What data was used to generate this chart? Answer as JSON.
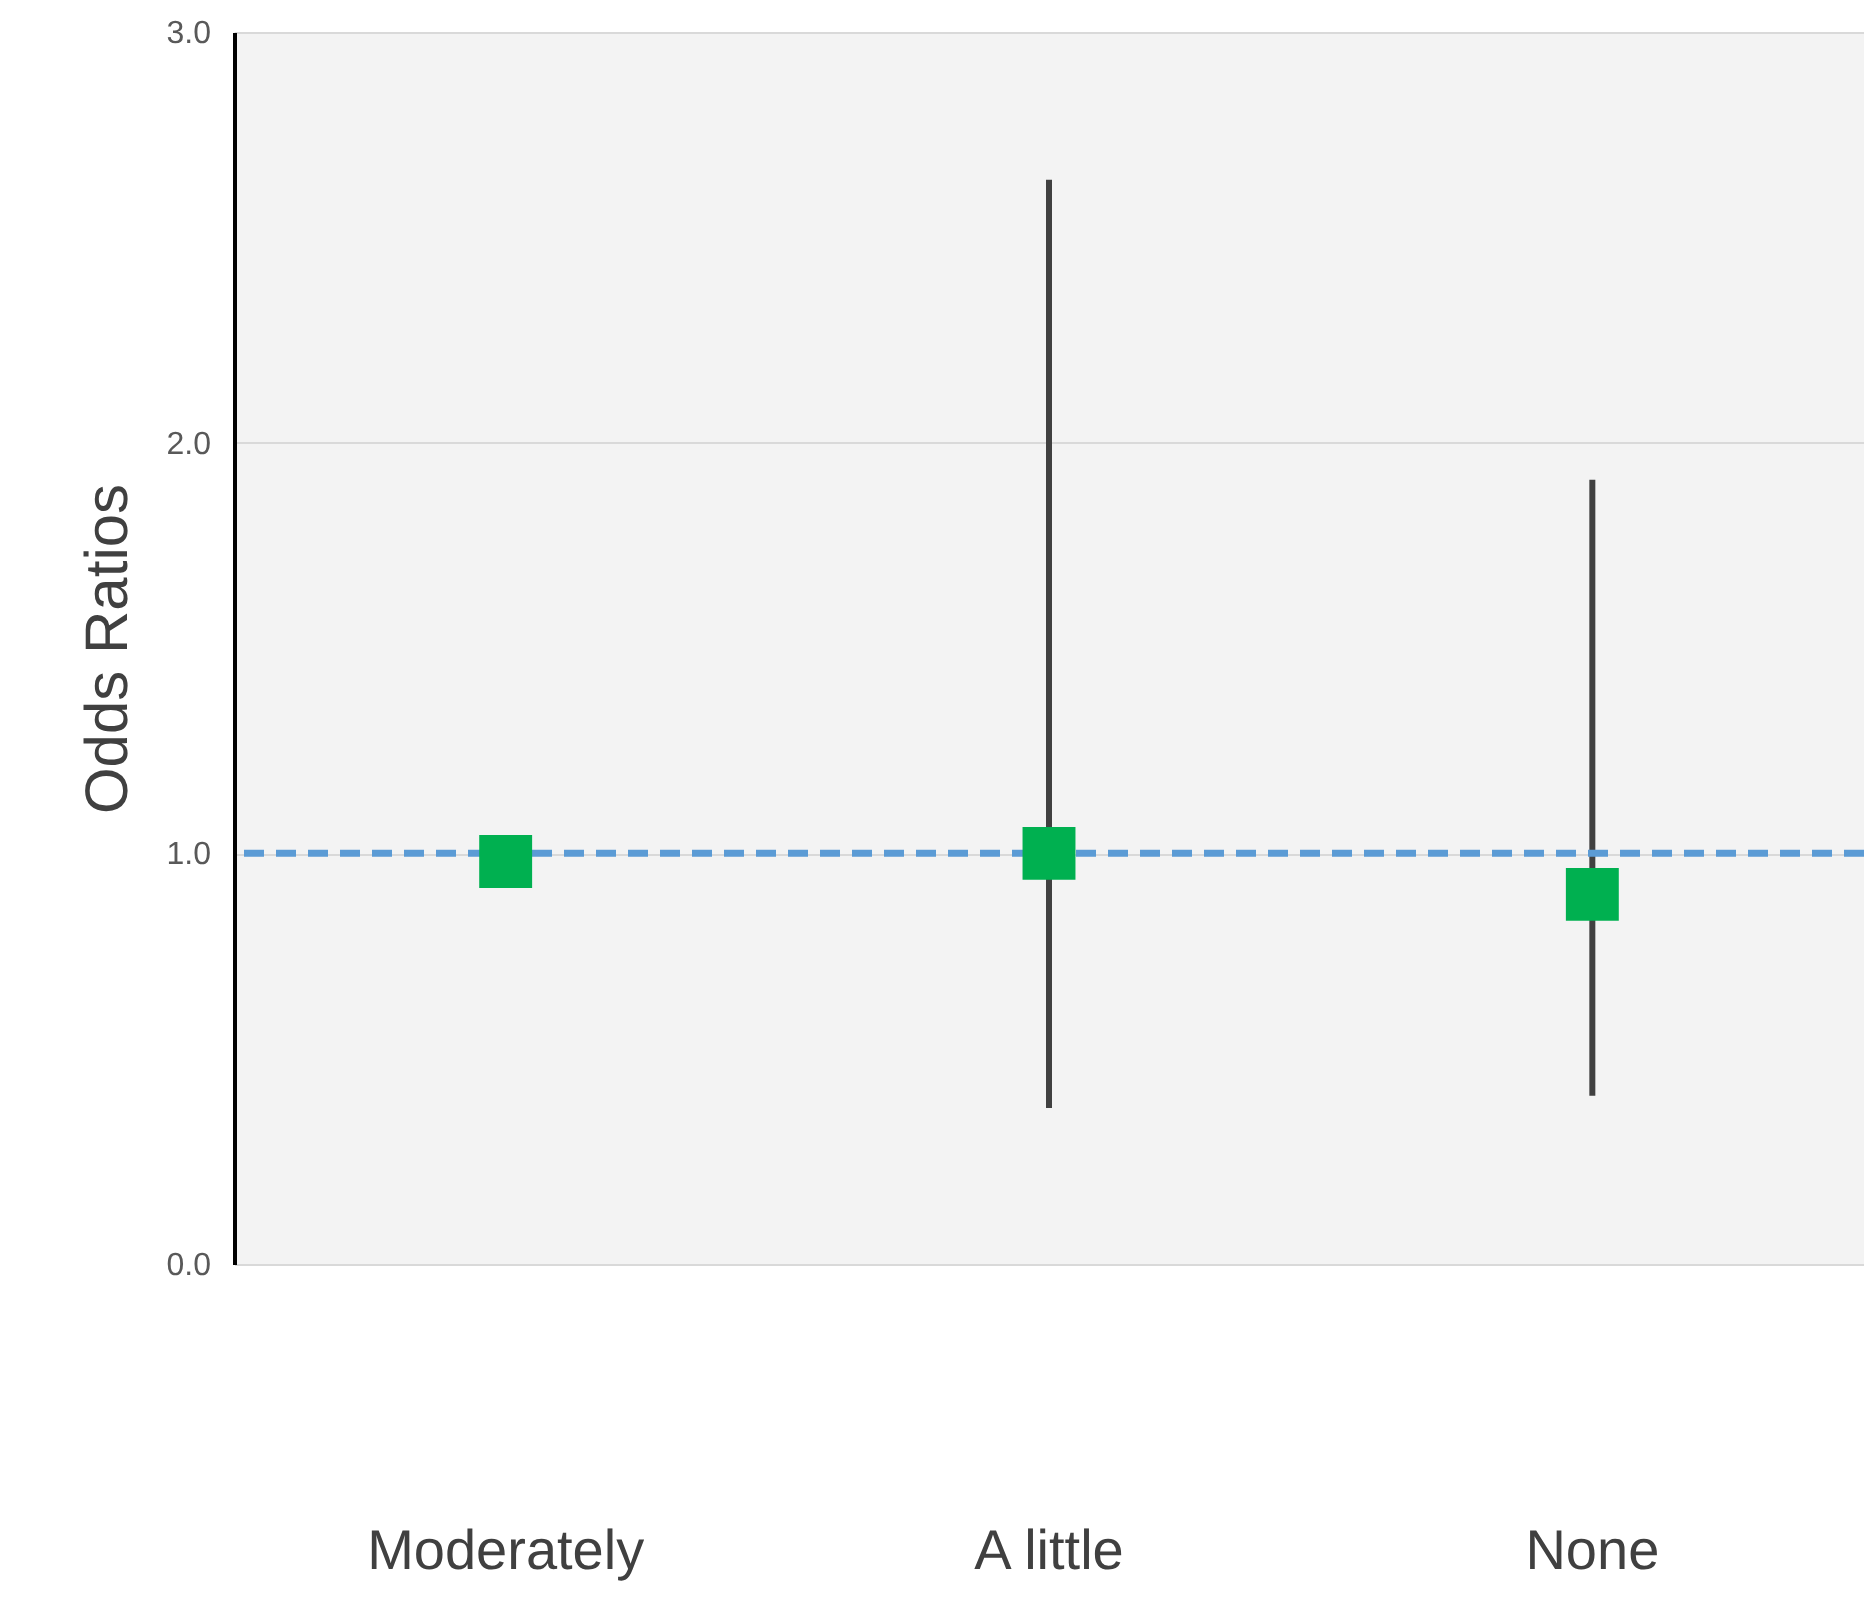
{
  "chart_data": {
    "type": "scatter",
    "ylabel": "Odds Ratios",
    "categories": [
      "Moderately",
      "A little",
      "None"
    ],
    "series": [
      {
        "color": "#00b050",
        "values": [
          0.98,
          1.0,
          0.9
        ],
        "errors": [
          null,
          [
            0.38,
            2.64
          ],
          [
            0.41,
            1.91
          ]
        ]
      }
    ],
    "ylim": [
      0,
      3
    ],
    "yticks": [
      {
        "value": 0,
        "label": "0.0"
      },
      {
        "value": 1,
        "label": "1.0"
      },
      {
        "value": 2,
        "label": "2.0"
      },
      {
        "value": 3,
        "label": "3.0"
      }
    ],
    "ref_lines": [
      {
        "axis": "y",
        "value": 1,
        "color": "#5b9bd5",
        "line_style": "dashed"
      }
    ],
    "grid": "y",
    "marker": "square"
  }
}
